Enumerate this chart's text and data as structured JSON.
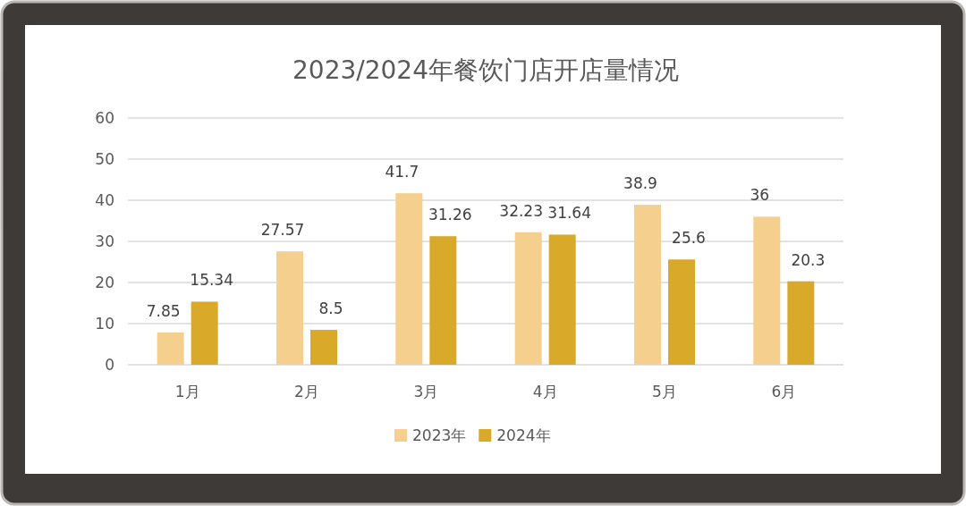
{
  "chart_data": {
    "type": "bar",
    "title": "2023/2024年餐饮门店开店量情况",
    "categories": [
      "1月",
      "2月",
      "3月",
      "4月",
      "5月",
      "6月"
    ],
    "series": [
      {
        "name": "2023年",
        "color": "#f5cf8e",
        "values": [
          7.85,
          27.57,
          41.7,
          32.23,
          38.9,
          36
        ]
      },
      {
        "name": "2024年",
        "color": "#d9a92a",
        "values": [
          15.34,
          8.5,
          31.26,
          31.64,
          25.6,
          20.3
        ]
      }
    ],
    "ylim": [
      0,
      60
    ],
    "yticks": [
      0,
      10,
      20,
      30,
      40,
      50,
      60
    ],
    "grid": "y",
    "legend": "bottom",
    "data_labels": true
  }
}
